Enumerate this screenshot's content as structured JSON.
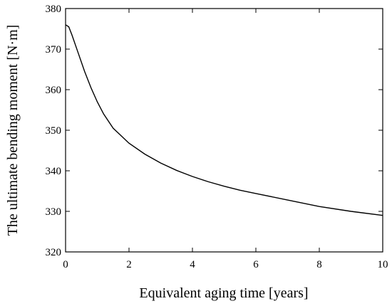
{
  "chart_data": {
    "type": "line",
    "title": "",
    "xlabel": "Equivalent aging time [years]",
    "ylabel": "The ultimate bending moment [N·m]",
    "xlim": [
      0,
      10
    ],
    "ylim": [
      320,
      380
    ],
    "xticks": [
      0,
      2,
      4,
      6,
      8,
      10
    ],
    "yticks": [
      320,
      330,
      340,
      350,
      360,
      370,
      380
    ],
    "xtick_labels": [
      "0",
      "2",
      "4",
      "6",
      "8",
      "10"
    ],
    "ytick_labels": [
      "320",
      "330",
      "340",
      "350",
      "360",
      "370",
      "380"
    ],
    "grid": false,
    "legend": "none",
    "line_color": "#000000",
    "series": [
      {
        "x": [
          0,
          0.1,
          0.2,
          0.4,
          0.6,
          0.8,
          1.0,
          1.2,
          1.5,
          2.0,
          2.5,
          3.0,
          3.5,
          4.0,
          4.5,
          5.0,
          5.5,
          6.0,
          7.0,
          8.0,
          9.0,
          10.0
        ],
        "y": [
          376.0,
          375.5,
          373.5,
          369.0,
          364.5,
          360.5,
          357.0,
          354.0,
          350.5,
          346.8,
          344.1,
          341.9,
          340.1,
          338.6,
          337.3,
          336.2,
          335.2,
          334.4,
          332.8,
          331.2,
          330.0,
          329.0
        ]
      }
    ]
  }
}
